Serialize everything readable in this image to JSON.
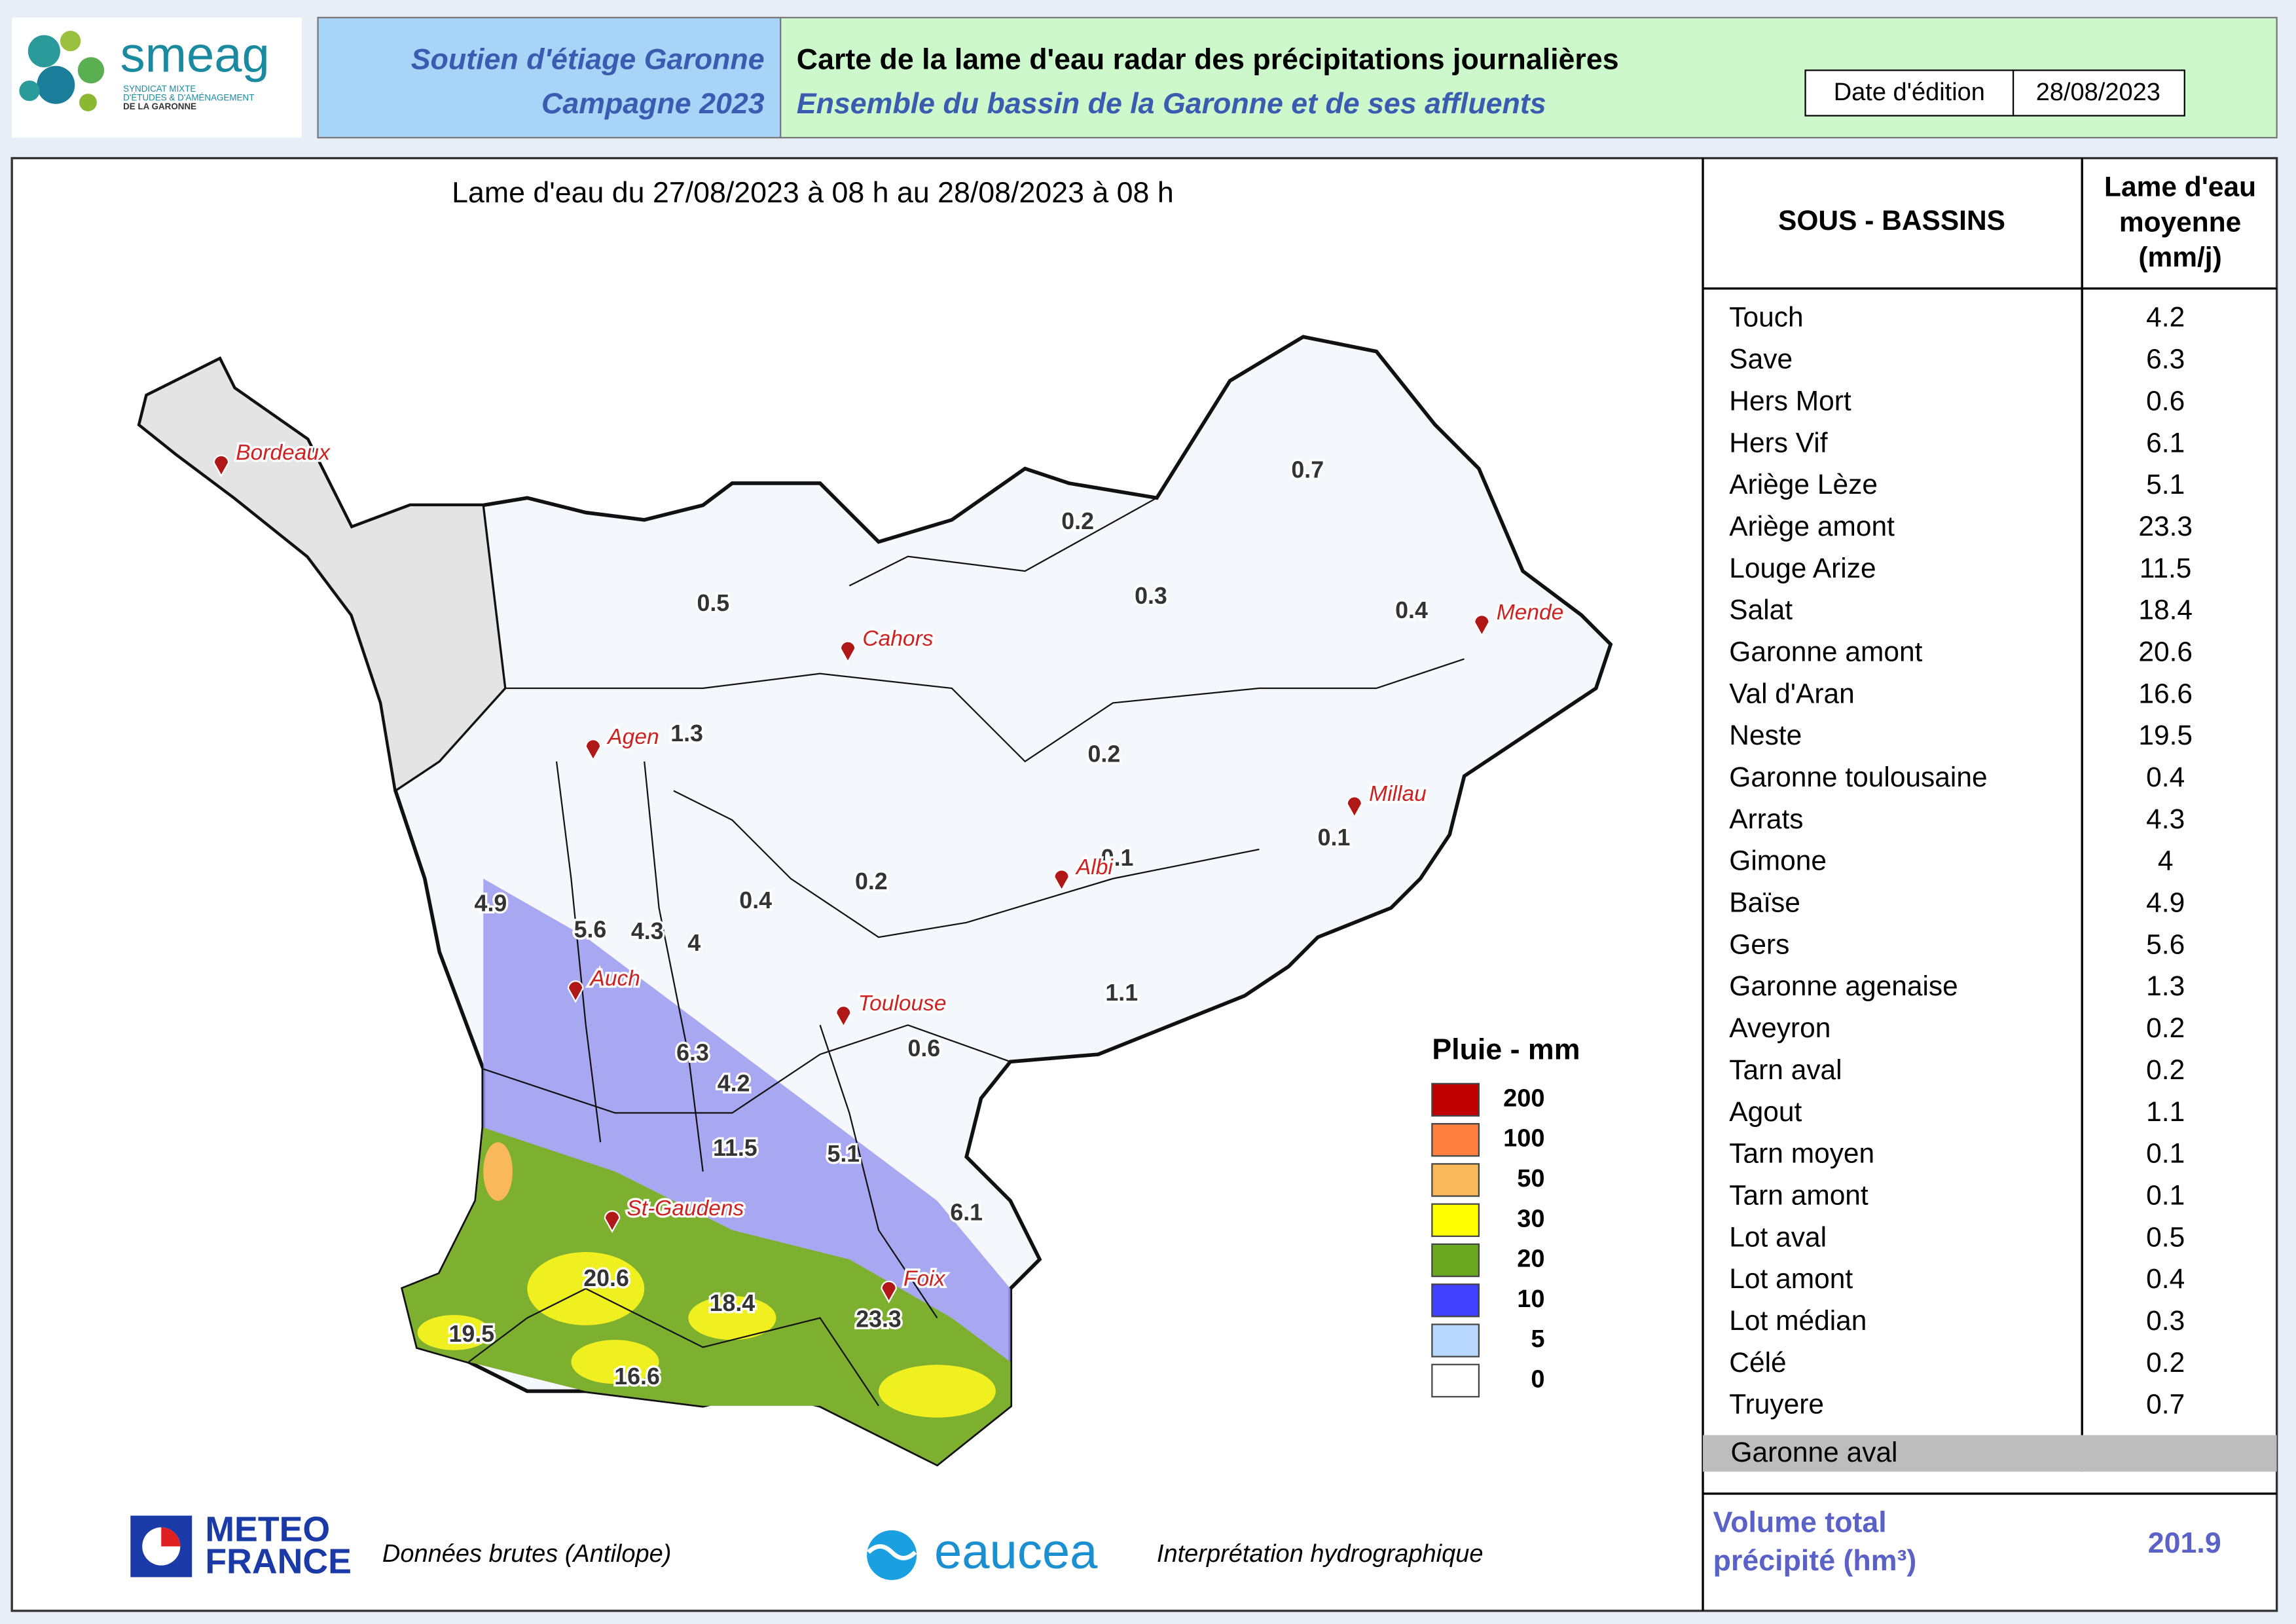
{
  "header": {
    "org_name": "smeag",
    "org_subtitle": [
      "SYNDICAT MIXTE",
      "D'ÉTUDES & D'AMÉNAGEMENT",
      "DE LA GARONNE"
    ],
    "program": [
      "Soutien d'étiage Garonne",
      "Campagne 2023"
    ],
    "title": "Carte de la lame d'eau radar des précipitations journalières",
    "subtitle": "Ensemble du bassin de la Garonne et de ses affluents",
    "date_label": "Date d'édition",
    "date": "28/08/2023"
  },
  "map": {
    "period": "Lame d'eau du 27/08/2023  à 08 h au  28/08/2023  à 08 h",
    "cities": [
      "Bordeaux",
      "Cahors",
      "Mende",
      "Agen",
      "Millau",
      "Albi",
      "Auch",
      "Toulouse",
      "St-Gaudens",
      "Foix"
    ],
    "basin_values": [
      0.7,
      0.2,
      0.5,
      0.3,
      0.4,
      1.3,
      0.2,
      0.1,
      0.2,
      0.1,
      0.4,
      4.9,
      5.6,
      4.3,
      4,
      1.1,
      0.6,
      6.3,
      4.2,
      11.5,
      5.1,
      6.1,
      20.6,
      18.4,
      23.3,
      19.5,
      16.6
    ],
    "legend": {
      "title": "Pluie - mm",
      "classes": [
        {
          "value": 200,
          "color": "#c00000"
        },
        {
          "value": 100,
          "color": "#ff7f3f"
        },
        {
          "value": 50,
          "color": "#f9b85a"
        },
        {
          "value": 30,
          "color": "#ffff00"
        },
        {
          "value": 20,
          "color": "#6aa820"
        },
        {
          "value": 10,
          "color": "#4040ff"
        },
        {
          "value": 5,
          "color": "#b8d8ff"
        },
        {
          "value": 0,
          "color": "#ffffff"
        }
      ]
    }
  },
  "table": {
    "headers": [
      [
        "SOUS - BASSINS"
      ],
      [
        "Lame d'eau",
        "moyenne",
        "(mm/j)"
      ]
    ],
    "rows": [
      [
        "Touch",
        4.2
      ],
      [
        "Save",
        6.3
      ],
      [
        "Hers Mort",
        0.6
      ],
      [
        "Hers Vif",
        6.1
      ],
      [
        "Ariège Lèze",
        5.1
      ],
      [
        "Ariège amont",
        23.3
      ],
      [
        "Louge Arize",
        11.5
      ],
      [
        "Salat",
        18.4
      ],
      [
        "Garonne amont",
        20.6
      ],
      [
        "Val d'Aran",
        16.6
      ],
      [
        "Neste",
        19.5
      ],
      [
        "Garonne toulousaine",
        0.4
      ],
      [
        "Arrats",
        4.3
      ],
      [
        "Gimone",
        4
      ],
      [
        "Baïse",
        4.9
      ],
      [
        "Gers",
        5.6
      ],
      [
        "Garonne agenaise",
        1.3
      ],
      [
        "Aveyron",
        0.2
      ],
      [
        "Tarn aval",
        0.2
      ],
      [
        "Agout",
        1.1
      ],
      [
        "Tarn moyen",
        0.1
      ],
      [
        "Tarn amont",
        0.1
      ],
      [
        "Lot aval",
        0.5
      ],
      [
        "Lot amont",
        0.4
      ],
      [
        "Lot médian",
        0.3
      ],
      [
        "Célé",
        0.2
      ],
      [
        "Truyere",
        0.7
      ]
    ],
    "last_row": "Garonne aval",
    "total_label": [
      "Volume total",
      "précipité (hm³)"
    ],
    "total": 201.9
  },
  "footer": {
    "meteo": [
      "METEO",
      "FRANCE"
    ],
    "meteo_text": "Données brutes (Antilope)",
    "eaucea": "eaucea",
    "eaucea_text": "Interprétation hydrographique"
  }
}
